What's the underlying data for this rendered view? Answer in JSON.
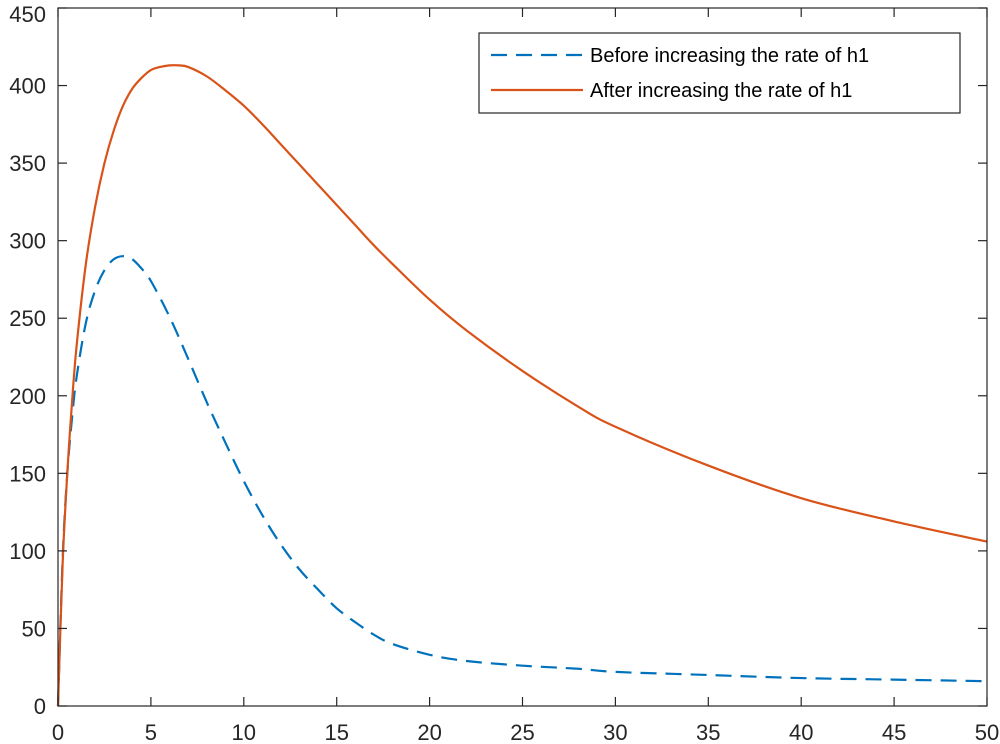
{
  "chart_data": {
    "type": "line",
    "title": "",
    "xlabel": "",
    "ylabel": "",
    "xlim": [
      0,
      50
    ],
    "ylim": [
      0,
      450
    ],
    "xticks": [
      0,
      5,
      10,
      15,
      20,
      25,
      30,
      35,
      40,
      45,
      50
    ],
    "yticks": [
      0,
      50,
      100,
      150,
      200,
      250,
      300,
      350,
      400,
      450
    ],
    "grid": false,
    "legend_position": "top-right",
    "series": [
      {
        "name": "Before increasing the rate of h1",
        "style": "dashed",
        "color": "#0072BD",
        "x": [
          0,
          0.25,
          0.5,
          0.75,
          1,
          1.5,
          2,
          2.5,
          3,
          3.5,
          4,
          4.5,
          5,
          6,
          7,
          8,
          9,
          10,
          11,
          12,
          13,
          14,
          15,
          16,
          17,
          18,
          20,
          22,
          25,
          28,
          30,
          35,
          40,
          45,
          50
        ],
        "y": [
          0,
          95,
          150,
          185,
          212,
          247,
          268,
          281,
          288,
          290,
          288,
          282,
          274,
          251,
          224,
          196,
          170,
          145,
          123,
          104,
          88,
          75,
          63,
          54,
          46,
          40,
          33,
          29,
          26,
          24,
          22,
          20,
          18,
          17,
          16
        ]
      },
      {
        "name": "After increasing the rate of h1",
        "style": "solid",
        "color": "#D95319",
        "x": [
          0,
          0.25,
          0.5,
          0.75,
          1,
          1.5,
          2,
          2.5,
          3,
          3.5,
          4,
          4.5,
          5,
          5.5,
          6,
          6.5,
          7,
          8,
          9,
          10,
          11,
          12,
          13,
          14,
          15,
          16,
          17,
          18,
          20,
          22,
          25,
          28,
          30,
          35,
          40,
          45,
          50
        ],
        "y": [
          0,
          92,
          150,
          195,
          232,
          285,
          322,
          350,
          371,
          387,
          398,
          405,
          410,
          412,
          413,
          413,
          412,
          406,
          397,
          387,
          375,
          362,
          349,
          336,
          323,
          310,
          297,
          285,
          262,
          242,
          216,
          193,
          180,
          155,
          134,
          119,
          106
        ]
      }
    ]
  }
}
